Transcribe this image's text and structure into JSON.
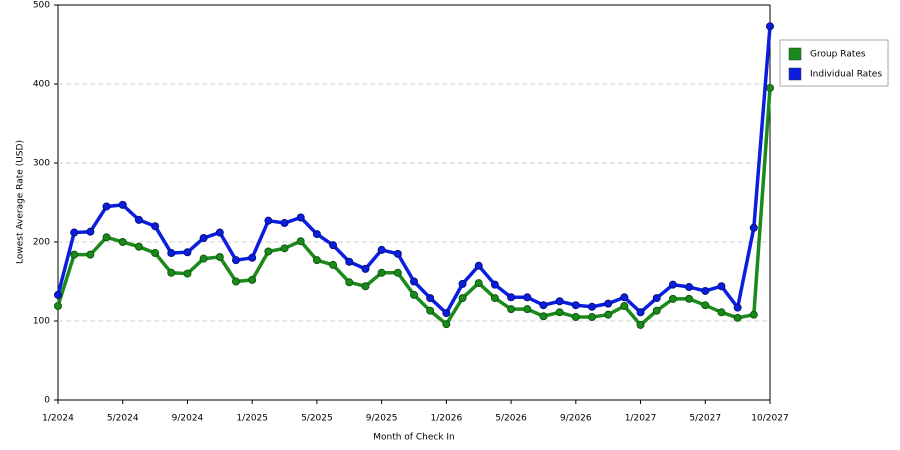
{
  "chart_data": {
    "type": "line",
    "x_label": "Month of Check In",
    "y_label": "Lowest Average Rate (USD)",
    "categories": [
      "1/2024",
      null,
      null,
      null,
      "5/2024",
      null,
      null,
      null,
      "9/2024",
      null,
      null,
      null,
      "1/2025",
      null,
      null,
      null,
      "5/2025",
      null,
      null,
      null,
      "9/2025",
      null,
      null,
      null,
      "1/2026",
      null,
      null,
      null,
      "5/2026",
      null,
      null,
      null,
      "9/2026",
      null,
      null,
      null,
      "1/2027",
      null,
      null,
      null,
      "5/2027",
      null,
      null,
      null,
      "10/2027"
    ],
    "series": [
      {
        "name": "Group Rates",
        "color": "#1a8a1a",
        "values": [
          119,
          184,
          184,
          206,
          200,
          194,
          186,
          161,
          160,
          179,
          181,
          150,
          152,
          188,
          192,
          201,
          177,
          171,
          149,
          144,
          161,
          161,
          133,
          113,
          96,
          129,
          148,
          129,
          115,
          115,
          106,
          111,
          105,
          105,
          108,
          119,
          95,
          113,
          128,
          128,
          120,
          111,
          104,
          108,
          395
        ]
      },
      {
        "name": "Individual Rates",
        "color": "#0a1ee0",
        "values": [
          133,
          212,
          213,
          245,
          247,
          228,
          220,
          186,
          187,
          205,
          212,
          177,
          180,
          227,
          224,
          231,
          210,
          196,
          175,
          166,
          190,
          185,
          150,
          129,
          110,
          147,
          170,
          146,
          130,
          130,
          120,
          125,
          120,
          118,
          122,
          130,
          111,
          129,
          146,
          143,
          138,
          144,
          117,
          218,
          473
        ]
      }
    ],
    "ylim": [
      0,
      500
    ],
    "yticks": [
      0,
      100,
      200,
      300,
      400,
      500
    ],
    "grid": true,
    "legend": "right"
  }
}
